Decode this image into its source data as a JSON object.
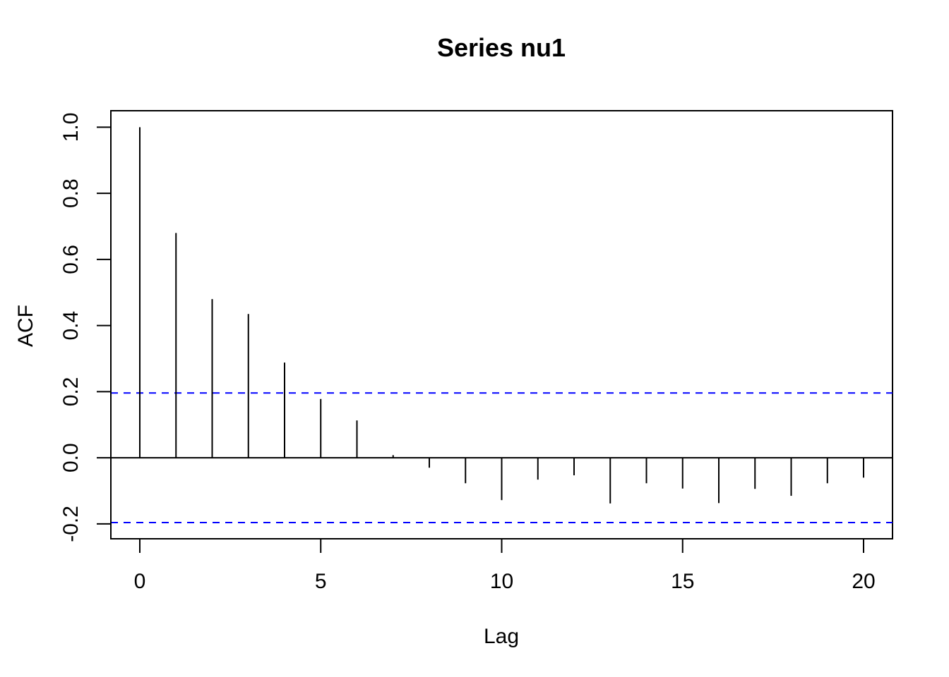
{
  "chart_data": {
    "type": "bar",
    "title": "Series nu1",
    "xlabel": "Lag",
    "ylabel": "ACF",
    "x": [
      0,
      1,
      2,
      3,
      4,
      5,
      6,
      7,
      8,
      9,
      10,
      11,
      12,
      13,
      14,
      15,
      16,
      17,
      18,
      19,
      20
    ],
    "values": [
      1.0,
      0.68,
      0.48,
      0.435,
      0.288,
      0.178,
      0.113,
      0.008,
      -0.03,
      -0.077,
      -0.128,
      -0.066,
      -0.053,
      -0.138,
      -0.077,
      -0.093,
      -0.137,
      -0.094,
      -0.115,
      -0.077,
      -0.06
    ],
    "confidence_bounds": [
      0.196,
      -0.196
    ],
    "confidence_color": "#0000ff",
    "xlim": [
      -0.8,
      20.8
    ],
    "ylim": [
      -0.245,
      1.05
    ],
    "xticks": [
      0,
      5,
      10,
      15,
      20
    ],
    "xtick_labels": [
      "0",
      "5",
      "10",
      "15",
      "20"
    ],
    "yticks": [
      -0.2,
      0.0,
      0.2,
      0.4,
      0.6,
      0.8,
      1.0
    ],
    "ytick_labels": [
      "-0.2",
      "0.0",
      "0.2",
      "0.4",
      "0.6",
      "0.8",
      "1.0"
    ],
    "grid": false,
    "legend": "none"
  }
}
